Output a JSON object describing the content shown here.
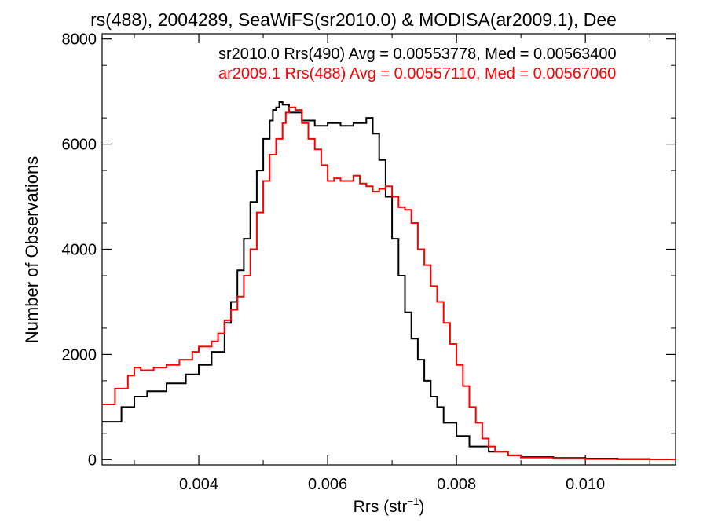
{
  "chart_data": {
    "type": "line",
    "title": "rs(488), 2004289, SeaWiFS(sr2010.0) & MODISA(ar2009.1), Dee",
    "xlabel": "Rrs (str",
    "xlabel_sup": "−1",
    "xlabel_close": ")",
    "ylabel": "Number of Observations",
    "xlim": [
      0.0025,
      0.0114
    ],
    "ylim": [
      -100,
      8100
    ],
    "x_ticks": [
      0.004,
      0.006,
      0.008,
      0.01
    ],
    "x_tick_labels": [
      "0.004",
      "0.006",
      "0.008",
      "0.010"
    ],
    "y_ticks": [
      0,
      2000,
      4000,
      6000,
      8000
    ],
    "y_tick_labels": [
      "0",
      "2000",
      "4000",
      "6000",
      "8000"
    ],
    "grid": false,
    "legend_placement": "top-right",
    "series": [
      {
        "name": "sr2010.0 Rrs(490) Avg = 0.00553778, Med = 0.00563400",
        "color": "#000000",
        "x": [
          0.0025,
          0.0028,
          0.003,
          0.0032,
          0.0035,
          0.0038,
          0.004,
          0.0042,
          0.0044,
          0.0045,
          0.0046,
          0.0047,
          0.0048,
          0.0049,
          0.005,
          0.0051,
          0.00515,
          0.0052,
          0.00525,
          0.0053,
          0.0054,
          0.0056,
          0.0058,
          0.006,
          0.0062,
          0.0064,
          0.0066,
          0.0067,
          0.0068,
          0.0069,
          0.007,
          0.0071,
          0.0072,
          0.0073,
          0.0074,
          0.0075,
          0.0076,
          0.0077,
          0.0078,
          0.008,
          0.0082,
          0.0085,
          0.0088,
          0.009,
          0.0095,
          0.01,
          0.0105,
          0.011,
          0.0114
        ],
        "y": [
          720,
          1000,
          1200,
          1300,
          1450,
          1620,
          1800,
          2050,
          2600,
          3000,
          3600,
          4200,
          4900,
          5500,
          6100,
          6450,
          6650,
          6700,
          6800,
          6750,
          6600,
          6450,
          6350,
          6400,
          6350,
          6400,
          6500,
          6200,
          5700,
          5000,
          4200,
          3500,
          2800,
          2300,
          1900,
          1500,
          1200,
          1000,
          700,
          450,
          250,
          150,
          80,
          50,
          30,
          20,
          10,
          5,
          0
        ]
      },
      {
        "name": "ar2009.1 Rrs(488) Avg = 0.00557110, Med = 0.00567060",
        "color": "#ff0000",
        "x": [
          0.0025,
          0.0027,
          0.0029,
          0.003,
          0.0031,
          0.0033,
          0.0035,
          0.0037,
          0.0039,
          0.004,
          0.0042,
          0.0043,
          0.0044,
          0.0045,
          0.0046,
          0.0047,
          0.0048,
          0.0049,
          0.005,
          0.0051,
          0.0052,
          0.0053,
          0.00535,
          0.0054,
          0.0055,
          0.0056,
          0.0057,
          0.0058,
          0.0059,
          0.006,
          0.0061,
          0.0062,
          0.0063,
          0.0064,
          0.0065,
          0.0066,
          0.0067,
          0.0068,
          0.0069,
          0.007,
          0.0071,
          0.0072,
          0.0073,
          0.0074,
          0.0075,
          0.0076,
          0.0077,
          0.0078,
          0.0079,
          0.008,
          0.0081,
          0.0082,
          0.0083,
          0.0084,
          0.0085,
          0.0086,
          0.0088,
          0.009,
          0.0095,
          0.01,
          0.0105,
          0.011,
          0.0114
        ],
        "y": [
          1050,
          1350,
          1600,
          1750,
          1700,
          1750,
          1800,
          1900,
          2050,
          2150,
          2250,
          2400,
          2650,
          2850,
          3100,
          3500,
          4000,
          4700,
          5300,
          5800,
          6100,
          6400,
          6600,
          6700,
          6650,
          6400,
          6100,
          5900,
          5600,
          5300,
          5350,
          5300,
          5300,
          5400,
          5250,
          5200,
          5100,
          5150,
          5200,
          5000,
          4800,
          4750,
          4500,
          4000,
          3700,
          3300,
          3000,
          2600,
          2200,
          1800,
          1400,
          1000,
          700,
          400,
          250,
          150,
          80,
          40,
          20,
          10,
          5,
          3,
          0
        ]
      }
    ]
  }
}
